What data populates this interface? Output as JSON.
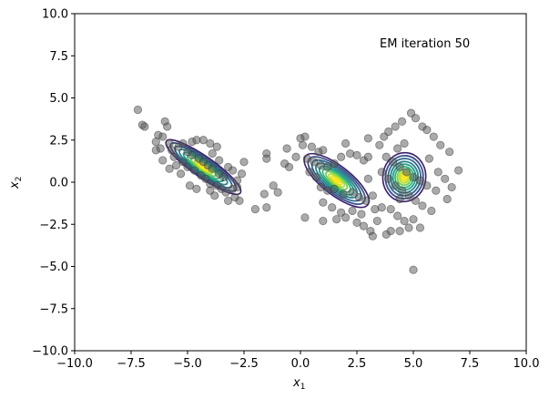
{
  "chart_data": {
    "type": "scatter",
    "title": "",
    "xlabel": {
      "base": "x",
      "sub": "1"
    },
    "ylabel": {
      "base": "x",
      "sub": "2"
    },
    "xlim": [
      -10,
      10
    ],
    "ylim": [
      -10,
      10
    ],
    "xticks": [
      -10,
      -7.5,
      -5,
      -2.5,
      0,
      2.5,
      5,
      7.5,
      10
    ],
    "xtick_labels": [
      "−10.0",
      "−7.5",
      "−5.0",
      "−2.5",
      "0.0",
      "2.5",
      "5.0",
      "7.5",
      "10.0"
    ],
    "yticks": [
      -10,
      -7.5,
      -5,
      -2.5,
      0,
      2.5,
      5,
      7.5,
      10
    ],
    "ytick_labels": [
      "−10.0",
      "−7.5",
      "−5.0",
      "−2.5",
      "0.0",
      "2.5",
      "5.0",
      "7.5",
      "10.0"
    ],
    "grid": false,
    "annotation": "EM iteration 50",
    "point_color": "#555555",
    "points": [
      [
        -7.2,
        4.3
      ],
      [
        -7.0,
        3.4
      ],
      [
        -6.9,
        3.3
      ],
      [
        -6.3,
        2.8
      ],
      [
        -6.0,
        3.6
      ],
      [
        -5.9,
        3.3
      ],
      [
        -6.1,
        2.7
      ],
      [
        -6.4,
        2.4
      ],
      [
        -6.2,
        2.0
      ],
      [
        -5.8,
        2.3
      ],
      [
        -5.7,
        1.9
      ],
      [
        -6.4,
        1.9
      ],
      [
        -6.1,
        1.3
      ],
      [
        -5.6,
        1.5
      ],
      [
        -5.4,
        2.1
      ],
      [
        -5.2,
        2.3
      ],
      [
        -4.8,
        2.4
      ],
      [
        -4.6,
        2.5
      ],
      [
        -4.3,
        2.5
      ],
      [
        -4.0,
        2.3
      ],
      [
        -3.7,
        2.1
      ],
      [
        -5.0,
        1.8
      ],
      [
        -4.8,
        1.6
      ],
      [
        -4.5,
        1.4
      ],
      [
        -4.3,
        1.2
      ],
      [
        -4.1,
        1.0
      ],
      [
        -3.9,
        0.8
      ],
      [
        -3.6,
        0.5
      ],
      [
        -3.4,
        0.3
      ],
      [
        -5.2,
        1.2
      ],
      [
        -5.0,
        0.9
      ],
      [
        -4.7,
        0.7
      ],
      [
        -4.4,
        0.4
      ],
      [
        -4.2,
        0.2
      ],
      [
        -4.0,
        -0.1
      ],
      [
        -3.7,
        -0.2
      ],
      [
        -3.5,
        -0.4
      ],
      [
        -5.5,
        1.0
      ],
      [
        -5.8,
        0.8
      ],
      [
        -5.3,
        0.5
      ],
      [
        -4.9,
        -0.2
      ],
      [
        -4.6,
        -0.4
      ],
      [
        -4.0,
        -0.5
      ],
      [
        -3.8,
        -0.8
      ],
      [
        -3.3,
        -0.6
      ],
      [
        -3.0,
        -0.4
      ],
      [
        -2.9,
        -0.9
      ],
      [
        -3.2,
        -1.1
      ],
      [
        -2.7,
        -1.1
      ],
      [
        -2.5,
        1.2
      ],
      [
        -2.6,
        0.5
      ],
      [
        -2.8,
        0.1
      ],
      [
        -1.5,
        1.7
      ],
      [
        -1.5,
        1.4
      ],
      [
        -1.2,
        -0.2
      ],
      [
        -1.0,
        -0.6
      ],
      [
        -1.6,
        -0.7
      ],
      [
        -1.5,
        -1.5
      ],
      [
        -2.0,
        -1.6
      ],
      [
        -3.9,
        1.7
      ],
      [
        -3.6,
        1.3
      ],
      [
        -3.2,
        0.9
      ],
      [
        -3.0,
        0.7
      ],
      [
        -2.8,
        -0.3
      ],
      [
        -0.6,
        2.0
      ],
      [
        -0.7,
        1.1
      ],
      [
        -0.5,
        0.9
      ],
      [
        -0.2,
        1.5
      ],
      [
        0.0,
        2.6
      ],
      [
        0.2,
        2.7
      ],
      [
        0.1,
        2.2
      ],
      [
        0.5,
        2.1
      ],
      [
        0.8,
        1.8
      ],
      [
        1.0,
        1.9
      ],
      [
        0.3,
        1.4
      ],
      [
        0.6,
        1.2
      ],
      [
        0.9,
        1.0
      ],
      [
        0.4,
        0.6
      ],
      [
        0.7,
        0.3
      ],
      [
        1.2,
        0.9
      ],
      [
        1.5,
        1.1
      ],
      [
        1.8,
        1.5
      ],
      [
        2.2,
        1.7
      ],
      [
        2.0,
        2.3
      ],
      [
        2.5,
        1.6
      ],
      [
        2.8,
        1.3
      ],
      [
        3.0,
        1.5
      ],
      [
        0.9,
        -0.3
      ],
      [
        1.2,
        -0.5
      ],
      [
        1.5,
        -0.4
      ],
      [
        1.9,
        -0.7
      ],
      [
        2.3,
        -0.6
      ],
      [
        2.6,
        -0.9
      ],
      [
        2.9,
        -1.1
      ],
      [
        3.2,
        -0.8
      ],
      [
        1.0,
        -1.2
      ],
      [
        1.4,
        -1.5
      ],
      [
        1.8,
        -1.8
      ],
      [
        2.3,
        -1.7
      ],
      [
        2.7,
        -1.9
      ],
      [
        3.3,
        -1.6
      ],
      [
        3.6,
        -1.5
      ],
      [
        0.2,
        -2.1
      ],
      [
        1.0,
        -2.3
      ],
      [
        1.6,
        -2.2
      ],
      [
        2.0,
        -2.1
      ],
      [
        2.5,
        -2.4
      ],
      [
        2.8,
        -2.6
      ],
      [
        3.1,
        -2.9
      ],
      [
        3.2,
        -3.2
      ],
      [
        3.8,
        -3.1
      ],
      [
        4.0,
        -2.9
      ],
      [
        3.0,
        2.6
      ],
      [
        3.5,
        2.2
      ],
      [
        3.7,
        2.7
      ],
      [
        3.9,
        3.0
      ],
      [
        4.2,
        3.3
      ],
      [
        4.5,
        3.6
      ],
      [
        4.9,
        4.1
      ],
      [
        5.1,
        3.8
      ],
      [
        5.4,
        3.3
      ],
      [
        5.6,
        3.1
      ],
      [
        5.9,
        2.7
      ],
      [
        6.2,
        2.2
      ],
      [
        6.6,
        1.8
      ],
      [
        3.8,
        1.5
      ],
      [
        4.1,
        1.2
      ],
      [
        4.4,
        0.9
      ],
      [
        4.7,
        0.6
      ],
      [
        5.0,
        0.3
      ],
      [
        5.3,
        0.1
      ],
      [
        5.6,
        -0.2
      ],
      [
        6.0,
        -0.5
      ],
      [
        3.6,
        0.6
      ],
      [
        3.9,
        0.2
      ],
      [
        4.2,
        -0.2
      ],
      [
        4.5,
        -0.5
      ],
      [
        4.8,
        -0.8
      ],
      [
        5.1,
        -1.1
      ],
      [
        5.4,
        -1.4
      ],
      [
        5.8,
        -1.7
      ],
      [
        6.1,
        0.6
      ],
      [
        6.4,
        0.2
      ],
      [
        6.7,
        -0.3
      ],
      [
        6.5,
        -1.0
      ],
      [
        7.0,
        0.7
      ],
      [
        4.0,
        -1.6
      ],
      [
        4.3,
        -2.0
      ],
      [
        4.6,
        -2.3
      ],
      [
        5.0,
        -2.2
      ],
      [
        5.3,
        -2.7
      ],
      [
        4.4,
        -2.9
      ],
      [
        4.8,
        -2.7
      ],
      [
        5.0,
        -5.2
      ],
      [
        4.4,
        -1.0
      ],
      [
        4.6,
        2.3
      ],
      [
        4.3,
        2.0
      ],
      [
        5.7,
        1.4
      ],
      [
        3.4,
        -2.3
      ],
      [
        3.0,
        0.2
      ]
    ],
    "clusters": [
      {
        "center": [
          -4.3,
          0.9
        ],
        "sx": 2.0,
        "sy": 0.62,
        "angle": -35
      },
      {
        "center": [
          1.6,
          0.1
        ],
        "sx": 1.75,
        "sy": 0.85,
        "angle": -38
      },
      {
        "center": [
          4.6,
          0.3
        ],
        "sx": 0.95,
        "sy": 1.45,
        "angle": -5
      }
    ],
    "contour_levels": [
      1.0,
      0.88,
      0.76,
      0.64,
      0.53,
      0.43,
      0.33,
      0.24,
      0.16,
      0.09
    ],
    "contour_colors": [
      "#3b1f6b",
      "#3b528b",
      "#31688e",
      "#26828e",
      "#1f9e89",
      "#35b779",
      "#6ece58",
      "#b5de2b",
      "#dde318",
      "#fde725"
    ]
  }
}
